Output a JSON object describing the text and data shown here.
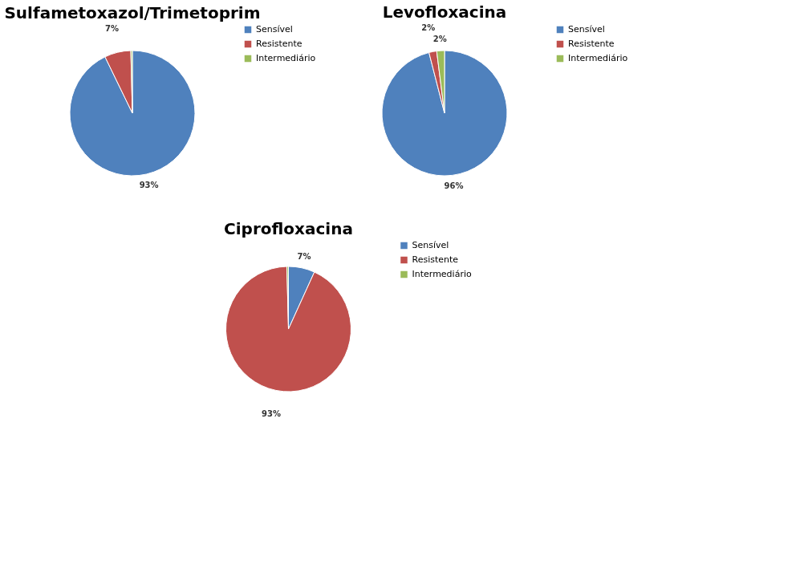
{
  "chart_data": [
    {
      "type": "pie",
      "title": "Sulfametoxazol/Trimetoprim",
      "categories": [
        "Sensível",
        "Resistente",
        "Intermediário"
      ],
      "values": [
        92.8,
        6.8,
        0.4
      ],
      "value_labels": [
        "93%",
        "7%",
        null
      ],
      "colors": [
        "#4f81bd",
        "#c0504d",
        "#9bbb59"
      ],
      "legend": "right"
    },
    {
      "type": "pie",
      "title": "Levofloxacina",
      "categories": [
        "Sensível",
        "Resistente",
        "Intermediário"
      ],
      "values": [
        96,
        2,
        2
      ],
      "value_labels": [
        "96%",
        "2%",
        "2%"
      ],
      "colors": [
        "#4f81bd",
        "#c0504d",
        "#9bbb59"
      ],
      "legend": "right"
    },
    {
      "type": "pie",
      "title": "Ciprofloxacina",
      "categories": [
        "Sensível",
        "Resistente",
        "Intermediário"
      ],
      "values": [
        6.8,
        92.8,
        0.4
      ],
      "value_labels": [
        "7%",
        "93%",
        null
      ],
      "colors": [
        "#4f81bd",
        "#c0504d",
        "#9bbb59"
      ],
      "legend": "right"
    }
  ]
}
